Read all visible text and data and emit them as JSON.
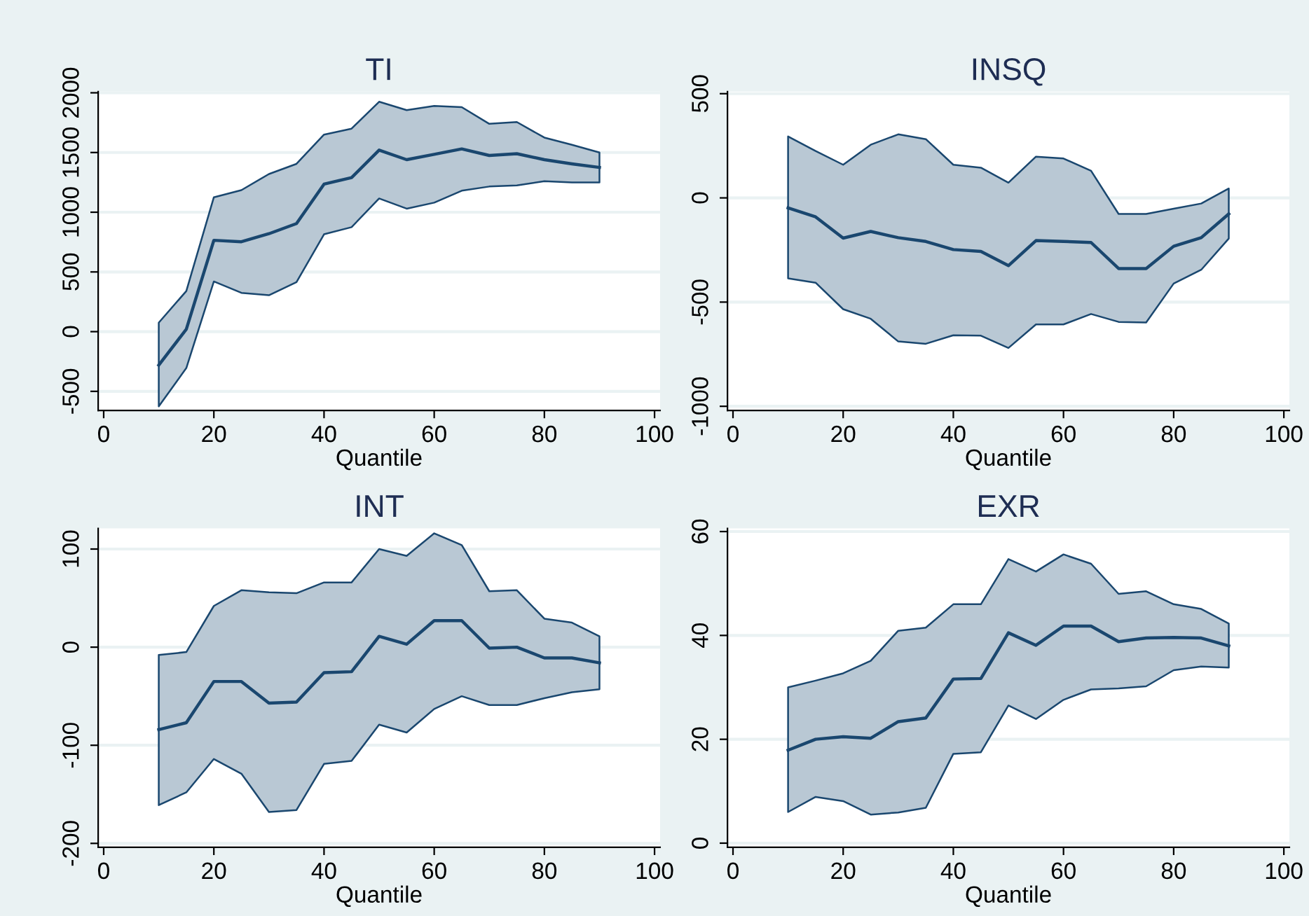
{
  "chart_data": [
    {
      "type": "line",
      "title": "TI",
      "xlabel": "Quantile",
      "xlim": [
        -1,
        101
      ],
      "xticks": [
        0,
        20,
        40,
        60,
        80,
        {
          "value": 100,
          "label": "100"
        }
      ],
      "ylim": [
        -660,
        2010
      ],
      "yticks": [
        -500,
        0,
        500,
        1000,
        1500,
        2000
      ],
      "grid": "y",
      "legend": false,
      "x": [
        10,
        15,
        20,
        25,
        30,
        35,
        40,
        45,
        50,
        55,
        60,
        65,
        70,
        75,
        80,
        85,
        90
      ],
      "series": [
        {
          "color": "#1a476f",
          "values": [
            -280,
            20,
            765,
            753,
            820,
            905,
            1235,
            1290,
            1520,
            1440,
            1485,
            1530,
            1475,
            1490,
            1440,
            1405,
            1375
          ],
          "upper": [
            75,
            340,
            1125,
            1185,
            1320,
            1405,
            1650,
            1700,
            1925,
            1855,
            1890,
            1880,
            1740,
            1755,
            1625,
            1565,
            1500
          ],
          "lower": [
            -625,
            -305,
            420,
            325,
            305,
            415,
            815,
            875,
            1115,
            1030,
            1080,
            1180,
            1215,
            1225,
            1260,
            1250,
            1250
          ]
        }
      ]
    },
    {
      "type": "line",
      "title": "INSQ",
      "xlabel": "Quantile",
      "xlim": [
        -1,
        101
      ],
      "xticks": [
        0,
        20,
        40,
        60,
        80,
        100
      ],
      "ylim": [
        -1020,
        510
      ],
      "yticks": [
        -1000,
        -500,
        0,
        500
      ],
      "grid": "y",
      "legend": false,
      "x": [
        10,
        15,
        20,
        25,
        30,
        35,
        40,
        45,
        50,
        55,
        60,
        65,
        70,
        75,
        80,
        85,
        90
      ],
      "series": [
        {
          "color": "#1a476f",
          "values": [
            -48,
            -91,
            -193,
            -161,
            -191,
            -209,
            -248,
            -257,
            -325,
            -205,
            -209,
            -214,
            -339,
            -339,
            -232,
            -191,
            -77
          ],
          "upper": [
            295,
            225,
            159,
            255,
            305,
            282,
            159,
            145,
            73,
            198,
            189,
            130,
            -77,
            -77,
            -52,
            -27,
            45
          ],
          "lower": [
            -386,
            -407,
            -534,
            -580,
            -689,
            -700,
            -659,
            -661,
            -720,
            -607,
            -607,
            -557,
            -595,
            -598,
            -411,
            -345,
            -195
          ]
        }
      ]
    },
    {
      "type": "line",
      "title": "INT",
      "xlabel": "Quantile",
      "xlim": [
        -1,
        101
      ],
      "xticks": [
        0,
        20,
        40,
        60,
        80,
        100
      ],
      "ylim": [
        -204,
        121
      ],
      "yticks": [
        -200,
        -100,
        0,
        100
      ],
      "grid": "y",
      "legend": false,
      "x": [
        10,
        15,
        20,
        25,
        30,
        35,
        40,
        45,
        50,
        55,
        60,
        65,
        70,
        75,
        80,
        85,
        90
      ],
      "series": [
        {
          "color": "#1a476f",
          "values": [
            -84,
            -77,
            -35,
            -35,
            -57,
            -56,
            -26,
            -25,
            11,
            3,
            27,
            27,
            -1,
            0,
            -11,
            -11,
            -16
          ],
          "upper": [
            -8,
            -5,
            42,
            58,
            56,
            55,
            66,
            66,
            100,
            93,
            116,
            104,
            57,
            58,
            29,
            25,
            11
          ],
          "lower": [
            -161,
            -148,
            -114,
            -129,
            -168,
            -166,
            -119,
            -116,
            -79,
            -87,
            -63,
            -50,
            -59,
            -59,
            -52,
            -46,
            -43
          ]
        }
      ]
    },
    {
      "type": "line",
      "title": "EXR",
      "xlabel": "Quantile",
      "xlim": [
        -1,
        101
      ],
      "xticks": [
        0,
        20,
        40,
        60,
        80,
        100
      ],
      "ylim": [
        -0.8,
        60.6
      ],
      "yticks": [
        0,
        20,
        40,
        60
      ],
      "grid": "y",
      "legend": false,
      "x": [
        10,
        15,
        20,
        25,
        30,
        35,
        40,
        45,
        50,
        55,
        60,
        65,
        70,
        75,
        80,
        85,
        90
      ],
      "series": [
        {
          "color": "#1a476f",
          "values": [
            17.9,
            20,
            20.5,
            20.2,
            23.4,
            24.1,
            31.6,
            31.7,
            40.5,
            38.1,
            41.8,
            41.8,
            38.8,
            39.5,
            39.6,
            39.5,
            38
          ],
          "upper": [
            30,
            31.3,
            32.7,
            35.1,
            40.9,
            41.5,
            46,
            46,
            54.7,
            52.3,
            55.6,
            53.8,
            48,
            48.5,
            46,
            45.1,
            42.3
          ],
          "lower": [
            6,
            8.9,
            8.1,
            5.5,
            5.9,
            6.8,
            17.2,
            17.5,
            26.5,
            23.9,
            27.6,
            29.6,
            29.8,
            30.2,
            33.3,
            34,
            33.8
          ]
        }
      ]
    }
  ]
}
